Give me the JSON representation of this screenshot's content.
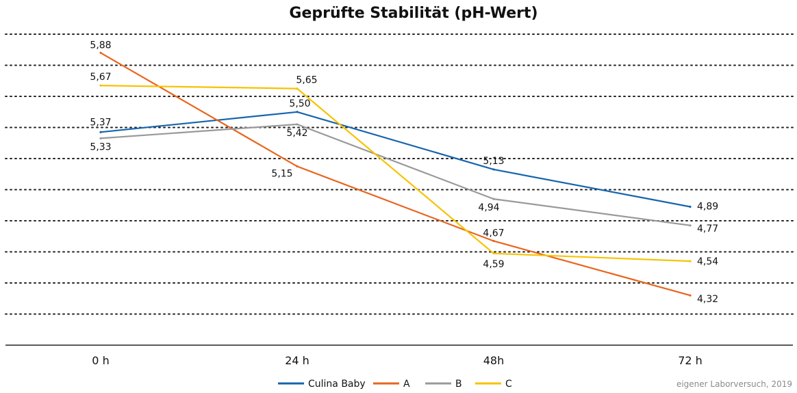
{
  "chart_data": {
    "type": "line",
    "title": "Geprüfte Stabilität (pH-Wert)",
    "xlabel": "",
    "ylabel": "",
    "categories": [
      "0 h",
      "24 h",
      "48h",
      "72 h"
    ],
    "ylim": [
      4.0,
      6.0
    ],
    "grid": true,
    "legend": "bottom-center",
    "series": [
      {
        "name": "Culina Baby",
        "color": "#1664ad",
        "values": [
          5.37,
          5.5,
          5.13,
          4.89
        ],
        "labels": [
          "5,37",
          "5,50",
          "5,13",
          "4,89"
        ]
      },
      {
        "name": "A",
        "color": "#e8641d",
        "values": [
          5.88,
          5.15,
          4.67,
          4.32
        ],
        "labels": [
          "5,88",
          "5,15",
          "4,67",
          "4,32"
        ]
      },
      {
        "name": "B",
        "color": "#999999",
        "values": [
          5.33,
          5.42,
          4.94,
          4.77
        ],
        "labels": [
          "5,33",
          "5,42",
          "4,94",
          "4,77"
        ]
      },
      {
        "name": "C",
        "color": "#f7c200",
        "values": [
          5.67,
          5.65,
          4.59,
          4.54
        ],
        "labels": [
          "5,67",
          "5,65",
          "4,59",
          "4,54"
        ]
      }
    ],
    "source": "eigener Laborversuch, 2019"
  }
}
